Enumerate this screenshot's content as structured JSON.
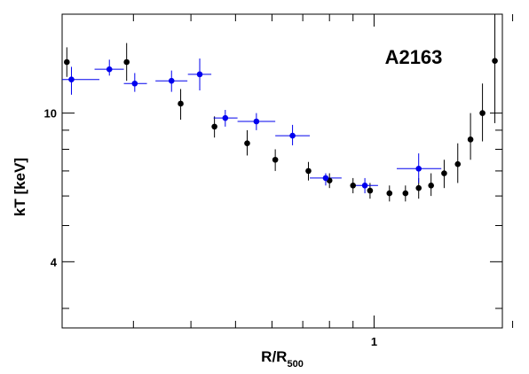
{
  "chart_data": {
    "type": "scatter",
    "title": "A2163",
    "xlabel": "R/R",
    "xlabel_sub": "500",
    "ylabel": "kT [keV]",
    "x_scale": "log",
    "y_scale": "log",
    "xlim": [
      0.21,
      1.9
    ],
    "ylim": [
      2.66,
      18.4
    ],
    "x_tick_labels": [
      {
        "value": 1,
        "label": "1"
      }
    ],
    "y_tick_labels": [
      {
        "value": 10,
        "label": "10"
      },
      {
        "value": 4,
        "label": "4"
      }
    ],
    "x_minor_ticks": [
      0.3,
      0.4,
      0.5,
      0.6,
      0.7,
      0.8,
      0.9,
      2
    ],
    "y_minor_ticks": [
      3,
      5,
      6,
      7,
      8,
      9
    ],
    "grid": false,
    "legend": "none",
    "series": [
      {
        "color": "#000000",
        "marker": "circle",
        "points": [
          {
            "x": 0.215,
            "y": 13.7,
            "ylo": 12.5,
            "yhi": 15.0
          },
          {
            "x": 0.29,
            "y": 13.7,
            "ylo": 12.2,
            "yhi": 15.4
          },
          {
            "x": 0.38,
            "y": 10.6,
            "ylo": 9.6,
            "yhi": 11.6
          },
          {
            "x": 0.45,
            "y": 9.2,
            "ylo": 8.6,
            "yhi": 9.8
          },
          {
            "x": 0.53,
            "y": 8.3,
            "ylo": 7.7,
            "yhi": 9.0
          },
          {
            "x": 0.61,
            "y": 7.5,
            "ylo": 7.0,
            "yhi": 8.0
          },
          {
            "x": 0.72,
            "y": 7.0,
            "ylo": 6.6,
            "yhi": 7.4
          },
          {
            "x": 0.8,
            "y": 6.6,
            "ylo": 6.3,
            "yhi": 6.9
          },
          {
            "x": 0.9,
            "y": 6.4,
            "ylo": 6.1,
            "yhi": 6.7
          },
          {
            "x": 0.98,
            "y": 6.2,
            "ylo": 5.9,
            "yhi": 6.5
          },
          {
            "x": 1.08,
            "y": 6.1,
            "ylo": 5.8,
            "yhi": 6.4
          },
          {
            "x": 1.17,
            "y": 6.1,
            "ylo": 5.8,
            "yhi": 6.4
          },
          {
            "x": 1.25,
            "y": 6.3,
            "ylo": 5.9,
            "yhi": 6.7
          },
          {
            "x": 1.33,
            "y": 6.4,
            "ylo": 6.0,
            "yhi": 6.9
          },
          {
            "x": 1.42,
            "y": 6.9,
            "ylo": 6.3,
            "yhi": 7.5
          },
          {
            "x": 1.52,
            "y": 7.3,
            "ylo": 6.5,
            "yhi": 8.3
          },
          {
            "x": 1.62,
            "y": 8.5,
            "ylo": 7.5,
            "yhi": 10.0
          },
          {
            "x": 1.72,
            "y": 10.0,
            "ylo": 8.4,
            "yhi": 12.0
          },
          {
            "x": 1.83,
            "y": 13.8,
            "ylo": 9.4,
            "yhi": 19.5
          }
        ]
      },
      {
        "color": "#0000ee",
        "marker": "circle",
        "points": [
          {
            "x": 0.22,
            "y": 12.3,
            "xlo": 0.205,
            "xhi": 0.253,
            "ylo": 11.2,
            "yhi": 13.3
          },
          {
            "x": 0.266,
            "y": 13.1,
            "xlo": 0.247,
            "xhi": 0.286,
            "ylo": 12.6,
            "yhi": 13.9
          },
          {
            "x": 0.302,
            "y": 12.0,
            "xlo": 0.286,
            "xhi": 0.321,
            "ylo": 11.4,
            "yhi": 12.8
          },
          {
            "x": 0.363,
            "y": 12.2,
            "xlo": 0.335,
            "xhi": 0.393,
            "ylo": 11.4,
            "yhi": 13.0
          },
          {
            "x": 0.418,
            "y": 12.7,
            "xlo": 0.394,
            "xhi": 0.443,
            "ylo": 11.5,
            "yhi": 14.0
          },
          {
            "x": 0.475,
            "y": 9.7,
            "xlo": 0.448,
            "xhi": 0.505,
            "ylo": 9.2,
            "yhi": 10.2
          },
          {
            "x": 0.555,
            "y": 9.5,
            "xlo": 0.505,
            "xhi": 0.61,
            "ylo": 9.0,
            "yhi": 10.0
          },
          {
            "x": 0.665,
            "y": 8.7,
            "xlo": 0.61,
            "xhi": 0.725,
            "ylo": 8.2,
            "yhi": 9.3
          },
          {
            "x": 0.785,
            "y": 6.7,
            "xlo": 0.725,
            "xhi": 0.85,
            "ylo": 6.4,
            "yhi": 6.9
          },
          {
            "x": 0.955,
            "y": 6.4,
            "xlo": 0.89,
            "xhi": 1.02,
            "ylo": 6.1,
            "yhi": 6.7
          },
          {
            "x": 1.25,
            "y": 7.1,
            "xlo": 1.12,
            "xhi": 1.4,
            "ylo": 6.5,
            "yhi": 7.8
          }
        ]
      }
    ]
  }
}
